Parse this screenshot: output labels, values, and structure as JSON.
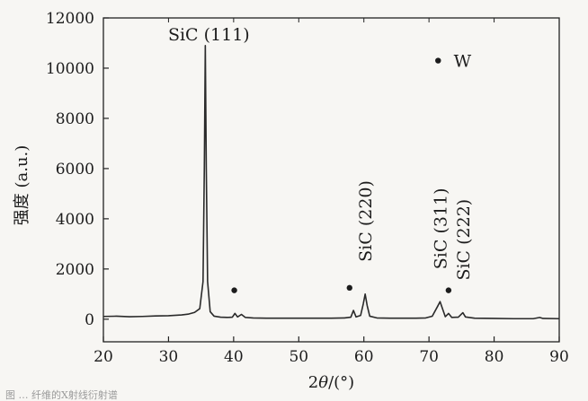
{
  "chart_data": {
    "type": "line",
    "xlabel_prefix": "2",
    "xlabel_symbol": "θ",
    "xlabel_suffix": "/(°)",
    "ylabel": "强度 (a.u.)",
    "xlim": [
      20,
      90
    ],
    "ylim": [
      -900,
      12000
    ],
    "xticks": [
      20,
      30,
      40,
      50,
      60,
      70,
      80,
      90
    ],
    "yticks": [
      0,
      2000,
      4000,
      6000,
      8000,
      10000,
      12000
    ],
    "grid": false,
    "series": [
      {
        "points": [
          [
            20,
            110
          ],
          [
            22,
            120
          ],
          [
            24,
            100
          ],
          [
            26,
            110
          ],
          [
            28,
            130
          ],
          [
            30,
            140
          ],
          [
            32,
            170
          ],
          [
            33,
            200
          ],
          [
            34,
            270
          ],
          [
            34.8,
            420
          ],
          [
            35.3,
            1500
          ],
          [
            35.5,
            6000
          ],
          [
            35.65,
            10900
          ],
          [
            35.8,
            6000
          ],
          [
            36.0,
            1500
          ],
          [
            36.4,
            300
          ],
          [
            37,
            120
          ],
          [
            38,
            80
          ],
          [
            39,
            70
          ],
          [
            39.8,
            80
          ],
          [
            40.2,
            230
          ],
          [
            40.6,
            90
          ],
          [
            41.2,
            190
          ],
          [
            41.8,
            70
          ],
          [
            43,
            50
          ],
          [
            45,
            40
          ],
          [
            47,
            40
          ],
          [
            49,
            40
          ],
          [
            51,
            40
          ],
          [
            53,
            40
          ],
          [
            55,
            40
          ],
          [
            57,
            50
          ],
          [
            58,
            80
          ],
          [
            58.4,
            350
          ],
          [
            58.8,
            90
          ],
          [
            59.5,
            150
          ],
          [
            59.9,
            600
          ],
          [
            60.2,
            1000
          ],
          [
            60.5,
            550
          ],
          [
            60.9,
            120
          ],
          [
            62,
            50
          ],
          [
            64,
            40
          ],
          [
            66,
            40
          ],
          [
            68,
            40
          ],
          [
            69.5,
            50
          ],
          [
            70.5,
            120
          ],
          [
            71.3,
            500
          ],
          [
            71.7,
            700
          ],
          [
            72.1,
            400
          ],
          [
            72.5,
            100
          ],
          [
            73.0,
            230
          ],
          [
            73.5,
            70
          ],
          [
            74.5,
            80
          ],
          [
            75.2,
            260
          ],
          [
            75.6,
            90
          ],
          [
            77,
            40
          ],
          [
            80,
            30
          ],
          [
            83,
            20
          ],
          [
            86,
            20
          ],
          [
            87,
            70
          ],
          [
            87.5,
            30
          ],
          [
            90,
            20
          ]
        ]
      }
    ],
    "peak_labels": [
      {
        "text": "SiC (111)",
        "x": 35.65,
        "y": 10900,
        "orientation": "horizontal"
      },
      {
        "text": "SiC (220)",
        "x": 60.2,
        "y": 1000,
        "orientation": "vertical"
      },
      {
        "text": "SiC (311)",
        "x": 71.7,
        "y": 700,
        "orientation": "vertical"
      },
      {
        "text": "SiC (222)",
        "x": 75.2,
        "y": 260,
        "orientation": "vertical"
      }
    ],
    "w_markers": [
      [
        40.1,
        1150
      ],
      [
        57.8,
        1250
      ],
      [
        73.0,
        1150
      ]
    ],
    "legend": {
      "symbol": "•",
      "text": "W",
      "position": "top-right"
    },
    "line_color": "#2a2a2a",
    "caption": "图 … 纤维的X射线衍射谱"
  }
}
